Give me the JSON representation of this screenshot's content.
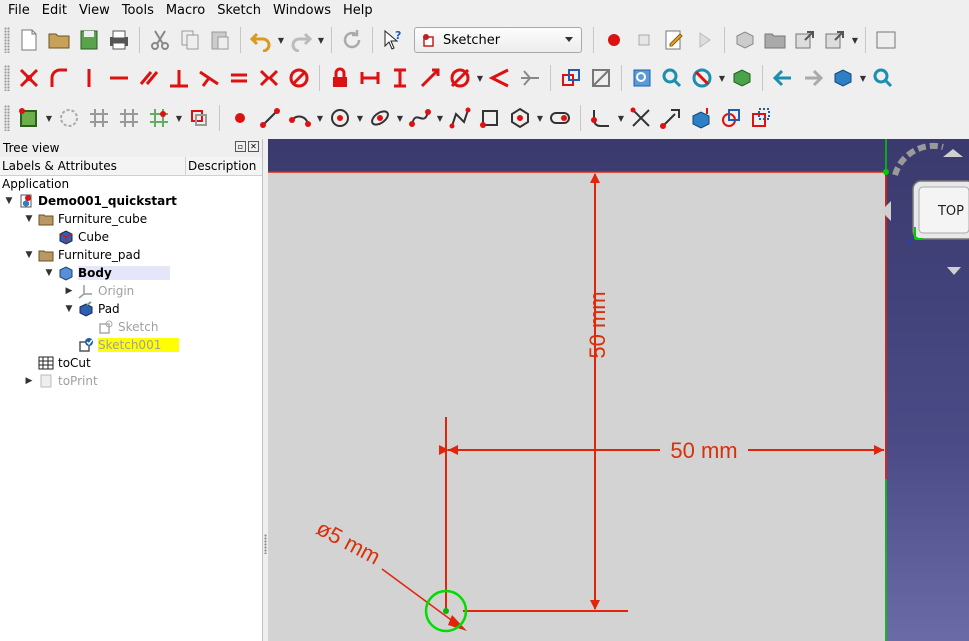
{
  "menubar": {
    "items": [
      "File",
      "Edit",
      "View",
      "Tools",
      "Macro",
      "Sketch",
      "Windows",
      "Help"
    ]
  },
  "toolbar": {
    "workbench": "Sketcher"
  },
  "tree": {
    "title": "Tree view",
    "col_labels": "Labels & Attributes",
    "col_description": "Description",
    "app": "Application",
    "items": [
      {
        "label": "Demo001_quickstart"
      },
      {
        "label": "Furniture_cube"
      },
      {
        "label": "Cube"
      },
      {
        "label": "Furniture_pad"
      },
      {
        "label": "Body"
      },
      {
        "label": "Origin"
      },
      {
        "label": "Pad"
      },
      {
        "label": "Sketch"
      },
      {
        "label": "Sketch001"
      },
      {
        "label": "toCut"
      },
      {
        "label": "toPrint"
      }
    ]
  },
  "view": {
    "dim_vertical": "50 mm",
    "dim_horizontal": "50 mm",
    "dim_diameter": "ø5 mm",
    "navcube_face": "TOP"
  },
  "colors": {
    "dimension": "#d9300a",
    "sketch_plane": "#d3d3d3",
    "background_top": "#3a3a6e",
    "selection_green": "#00cc00",
    "highlight_yellow": "#ffff00"
  }
}
